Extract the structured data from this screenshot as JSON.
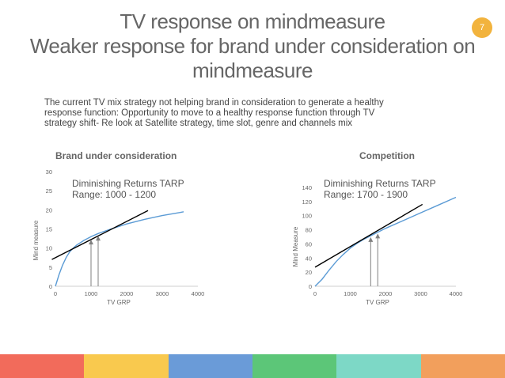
{
  "slide": {
    "title_lines": [
      "TV response on mindmeasure",
      "Weaker response for brand under consideration on",
      "mindmeasure"
    ],
    "page_number": "7",
    "body": "The current TV mix strategy not helping brand in consideration to generate a healthy response function: Opportunity to move to a healthy  response function through TV strategy shift- Re look at Satellite strategy, time slot, genre and channels mix",
    "footer_colors": [
      "#f26b5b",
      "#f9c94e",
      "#6a9bd8",
      "#5cc678",
      "#7dd8c6",
      "#f29f5c"
    ]
  },
  "chart_data": [
    {
      "type": "line",
      "title": "Brand  under consideration",
      "xlabel": "TV GRP",
      "ylabel": "Mind measure",
      "xlim": [
        0,
        4000
      ],
      "ylim": [
        0,
        30
      ],
      "xticks": [
        0,
        1000,
        2000,
        3000,
        4000
      ],
      "yticks": [
        0,
        5,
        10,
        15,
        20,
        25,
        30
      ],
      "annotation": [
        "Diminishing Returns TARP",
        "Range: 1000 - 1200"
      ],
      "series": [
        {
          "color": "#5b9bd5",
          "x": [
            0,
            100,
            200,
            300,
            400,
            500,
            600,
            800,
            1000,
            1200,
            1500,
            2000,
            2500,
            3000,
            3500,
            3600
          ],
          "y": [
            0,
            3,
            5.5,
            7.5,
            9,
            10,
            10.8,
            12,
            13,
            13.8,
            14.8,
            16.3,
            17.5,
            18.5,
            19.3,
            19.5
          ]
        }
      ],
      "tangent": {
        "color": "#000000",
        "x": [
          -100,
          2600
        ],
        "y": [
          7,
          19.8
        ]
      },
      "arrows_x": [
        1000,
        1200
      ],
      "arrows_y": [
        12.8,
        13.8
      ],
      "grid": false
    },
    {
      "type": "line",
      "title": "Competition",
      "xlabel": "TV GRP",
      "ylabel": "Mind Measure",
      "xlim": [
        0,
        4000
      ],
      "ylim": [
        0,
        140
      ],
      "xticks": [
        0,
        1000,
        2000,
        3000,
        4000
      ],
      "yticks": [
        0,
        20,
        40,
        60,
        80,
        100,
        120,
        140
      ],
      "annotation": [
        "Diminishing Returns TARP",
        "Range: 1700 - 1900"
      ],
      "series": [
        {
          "color": "#5b9bd5",
          "x": [
            0,
            200,
            400,
            600,
            800,
            1000,
            1200,
            1400,
            1600,
            1800,
            2000,
            2500,
            3000,
            3500,
            4000
          ],
          "y": [
            0,
            10,
            23,
            35,
            45,
            54,
            61,
            67,
            72,
            77,
            82,
            93,
            104,
            115,
            126
          ]
        }
      ],
      "tangent": {
        "color": "#000000",
        "x": [
          0,
          3050
        ],
        "y": [
          27,
          116
        ]
      },
      "arrows_x": [
        1580,
        1780
      ],
      "arrows_y": [
        73,
        78
      ],
      "grid": false
    }
  ]
}
